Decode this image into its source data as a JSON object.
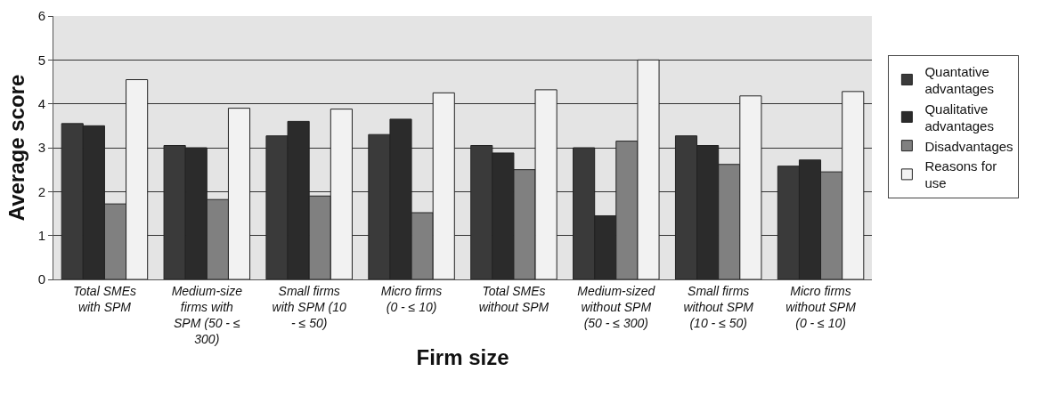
{
  "chart_data": {
    "type": "bar",
    "xlabel": "Firm size",
    "ylabel": "Average score",
    "categories": [
      "Total SMEs with SPM",
      "Medium-size firms with SPM (50 - ≤ 300)",
      "Small firms with SPM (10 - ≤ 50)",
      "Micro firms (0 - ≤ 10)",
      "Total SMEs without SPM",
      "Medium-sized without SPM (50 - ≤ 300)",
      "Small firms without SPM (10 - ≤ 50)",
      "Micro firms without SPM (0 - ≤ 10)"
    ],
    "series": [
      {
        "name": "Quantative advantages",
        "color": "#3a3a3a",
        "values": [
          3.55,
          3.05,
          3.27,
          3.3,
          3.05,
          3.0,
          3.27,
          2.58
        ]
      },
      {
        "name": "Qualitative advantages",
        "color": "#2b2b2b",
        "values": [
          3.5,
          3.0,
          3.6,
          3.65,
          2.88,
          1.45,
          3.05,
          2.72
        ]
      },
      {
        "name": "Disadvantages",
        "color": "#808080",
        "values": [
          1.72,
          1.82,
          1.9,
          1.52,
          2.5,
          3.15,
          2.62,
          2.45
        ]
      },
      {
        "name": "Reasons for use",
        "color": "#f2f2f2",
        "values": [
          4.55,
          3.9,
          3.88,
          4.25,
          4.32,
          5.0,
          4.18,
          4.28
        ]
      }
    ],
    "ylim": [
      0,
      6
    ],
    "yticks": [
      0,
      1,
      2,
      3,
      4,
      5,
      6
    ],
    "grid": "y",
    "legend": "right"
  }
}
